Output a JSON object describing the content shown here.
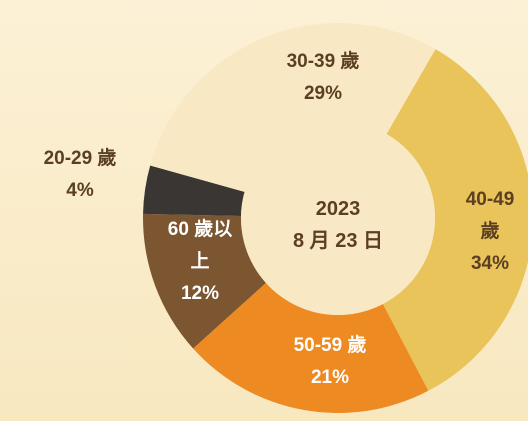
{
  "chart_data": {
    "type": "donut",
    "center_text": [
      "2023",
      "8 月 23 日"
    ],
    "categories": [
      "40-49 歲",
      "50-59 歲",
      "60 歲以上",
      "20-29 歲",
      "30-39 歲"
    ],
    "values": [
      34,
      21,
      12,
      4,
      29
    ],
    "value_labels": [
      "34%",
      "21%",
      "12%",
      "4%",
      "29%"
    ],
    "colors": [
      "#e9c45b",
      "#ee8a22",
      "#7b5631",
      "#3a3633",
      "#f9e8c4"
    ]
  }
}
